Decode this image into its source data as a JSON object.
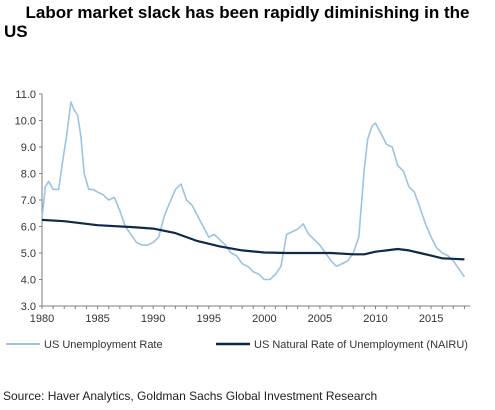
{
  "chart_data": {
    "type": "line",
    "title": "Labor market slack has been rapidly diminishing in the US",
    "title_lines": [
      "Labor market slack has been rapidly diminishing in the",
      "US"
    ],
    "xlabel": "",
    "ylabel": "",
    "xlim": [
      1980,
      2018.5
    ],
    "ylim": [
      3.0,
      11.0
    ],
    "x_ticks": [
      "1980",
      "1985",
      "1990",
      "1995",
      "2000",
      "2005",
      "2010",
      "2015"
    ],
    "y_ticks": [
      "11.0",
      "10.0",
      "9.0",
      "8.0",
      "7.0",
      "6.0",
      "5.0",
      "4.0",
      "3.0"
    ],
    "grid": false,
    "legend_position": "bottom",
    "colors": {
      "unemployment": "#9bc3e2",
      "nairu": "#0d2a4a",
      "axis": "#7f7f7f"
    },
    "series": [
      {
        "name": "US Unemployment Rate",
        "x": [
          1980.0,
          1980.3,
          1980.6,
          1981.0,
          1981.5,
          1981.8,
          1982.2,
          1982.6,
          1982.9,
          1983.2,
          1983.5,
          1983.8,
          1984.2,
          1984.6,
          1985.0,
          1985.5,
          1986.0,
          1986.5,
          1987.0,
          1987.5,
          1988.0,
          1988.5,
          1989.0,
          1989.5,
          1990.0,
          1990.5,
          1991.0,
          1991.5,
          1992.0,
          1992.5,
          1993.0,
          1993.5,
          1994.0,
          1994.5,
          1995.0,
          1995.5,
          1996.0,
          1996.5,
          1997.0,
          1997.5,
          1998.0,
          1998.5,
          1999.0,
          1999.5,
          2000.0,
          2000.5,
          2001.0,
          2001.5,
          2002.0,
          2002.5,
          2003.0,
          2003.5,
          2004.0,
          2004.5,
          2005.0,
          2005.5,
          2006.0,
          2006.5,
          2007.0,
          2007.5,
          2008.0,
          2008.5,
          2009.0,
          2009.3,
          2009.7,
          2010.0,
          2010.5,
          2011.0,
          2011.5,
          2012.0,
          2012.5,
          2013.0,
          2013.5,
          2014.0,
          2014.5,
          2015.0,
          2015.5,
          2016.0,
          2016.5,
          2017.0,
          2017.5,
          2018.0
        ],
        "values": [
          6.3,
          7.5,
          7.7,
          7.4,
          7.4,
          8.3,
          9.4,
          10.7,
          10.4,
          10.2,
          9.4,
          8.0,
          7.4,
          7.4,
          7.3,
          7.2,
          7.0,
          7.1,
          6.6,
          6.0,
          5.7,
          5.4,
          5.3,
          5.3,
          5.4,
          5.6,
          6.4,
          6.9,
          7.4,
          7.6,
          7.0,
          6.8,
          6.4,
          6.0,
          5.6,
          5.7,
          5.5,
          5.3,
          5.0,
          4.9,
          4.6,
          4.5,
          4.3,
          4.2,
          4.0,
          4.0,
          4.2,
          4.5,
          5.7,
          5.8,
          5.9,
          6.1,
          5.7,
          5.5,
          5.3,
          5.0,
          4.7,
          4.5,
          4.6,
          4.7,
          5.0,
          5.6,
          8.2,
          9.3,
          9.8,
          9.9,
          9.5,
          9.1,
          9.0,
          8.3,
          8.1,
          7.5,
          7.3,
          6.7,
          6.1,
          5.6,
          5.2,
          5.0,
          4.9,
          4.7,
          4.4,
          4.1
        ]
      },
      {
        "name": "US Natural Rate of Unemployment (NAIRU)",
        "x": [
          1980,
          1982,
          1985,
          1988,
          1990,
          1992,
          1994,
          1996,
          1998,
          2000,
          2002,
          2004,
          2006,
          2008,
          2009,
          2010,
          2011,
          2012,
          2013,
          2014,
          2015,
          2016,
          2017,
          2018
        ],
        "values": [
          6.25,
          6.2,
          6.05,
          5.98,
          5.92,
          5.75,
          5.45,
          5.25,
          5.1,
          5.02,
          5.0,
          5.0,
          5.0,
          4.95,
          4.95,
          5.05,
          5.1,
          5.15,
          5.1,
          5.0,
          4.9,
          4.8,
          4.78,
          4.76
        ]
      }
    ]
  },
  "source": "Source: Haver Analytics, Goldman Sachs Global Investment Research"
}
